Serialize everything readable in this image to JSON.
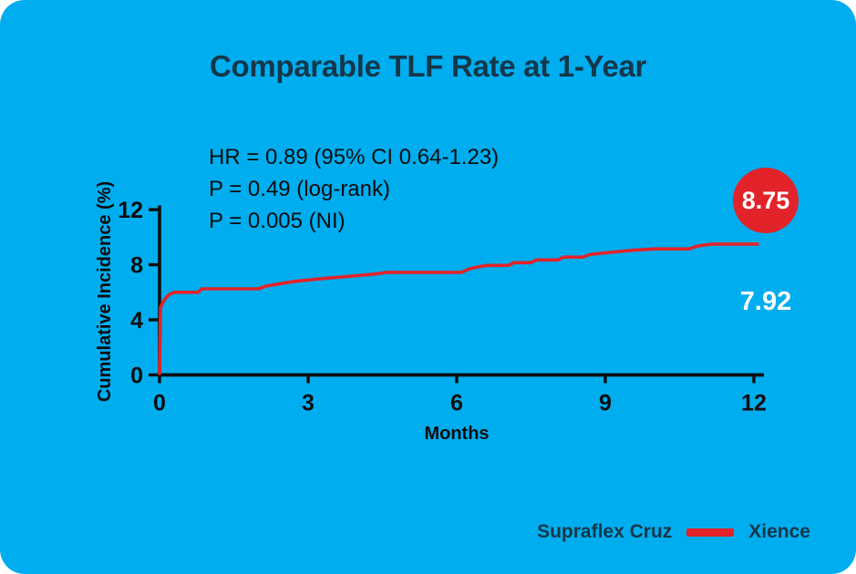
{
  "colors": {
    "background_blue": "#00ADEE",
    "accent_red": "#E2232A",
    "title_navy": "#14374A",
    "text_dark": "#0D0D0D",
    "white": "#FFFFFF"
  },
  "chart_data": {
    "type": "line",
    "style": "kaplan-meier-step-curve",
    "title": "Comparable TLF Rate at 1-Year",
    "xlabel": "Months",
    "ylabel": "Cumulative Incidence (%)",
    "xlim": [
      0,
      12.2
    ],
    "ylim": [
      0,
      12
    ],
    "x_ticks": [
      0,
      3,
      6,
      9,
      12
    ],
    "y_ticks": [
      0,
      4,
      8,
      12
    ],
    "grid": false,
    "legend_position": "bottom-right",
    "annotations": [
      "HR = 0.89 (95% CI 0.64-1.23)",
      "P = 0.49 (log-rank)",
      "P = 0.005 (NI)"
    ],
    "value_labels": [
      {
        "text": "8.75",
        "style": "red-circle-badge"
      },
      {
        "text": "7.92",
        "style": "white-bold-text"
      }
    ],
    "series": [
      {
        "name": "Xience",
        "color": "#E2232A",
        "points": [
          [
            0,
            0
          ],
          [
            0.02,
            4.9
          ],
          [
            0.07,
            5.3
          ],
          [
            0.13,
            5.6
          ],
          [
            0.2,
            5.85
          ],
          [
            0.3,
            6.0
          ],
          [
            0.78,
            6.0
          ],
          [
            0.85,
            6.25
          ],
          [
            2.0,
            6.25
          ],
          [
            2.15,
            6.45
          ],
          [
            2.4,
            6.6
          ],
          [
            2.75,
            6.8
          ],
          [
            3.3,
            7.0
          ],
          [
            3.8,
            7.15
          ],
          [
            4.3,
            7.3
          ],
          [
            4.6,
            7.45
          ],
          [
            6.1,
            7.45
          ],
          [
            6.25,
            7.7
          ],
          [
            6.45,
            7.85
          ],
          [
            6.6,
            7.95
          ],
          [
            7.05,
            7.95
          ],
          [
            7.15,
            8.15
          ],
          [
            7.5,
            8.15
          ],
          [
            7.6,
            8.35
          ],
          [
            8.05,
            8.35
          ],
          [
            8.15,
            8.55
          ],
          [
            8.55,
            8.55
          ],
          [
            8.7,
            8.75
          ],
          [
            9.1,
            8.9
          ],
          [
            9.55,
            9.05
          ],
          [
            10.0,
            9.15
          ],
          [
            10.7,
            9.15
          ],
          [
            10.85,
            9.35
          ],
          [
            11.15,
            9.5
          ],
          [
            12.1,
            9.5
          ]
        ]
      }
    ],
    "legend_entries": [
      {
        "label": "Supraflex Cruz",
        "swatch_color": null
      },
      {
        "label": "Xience",
        "swatch_color": "#E2232A"
      }
    ]
  }
}
